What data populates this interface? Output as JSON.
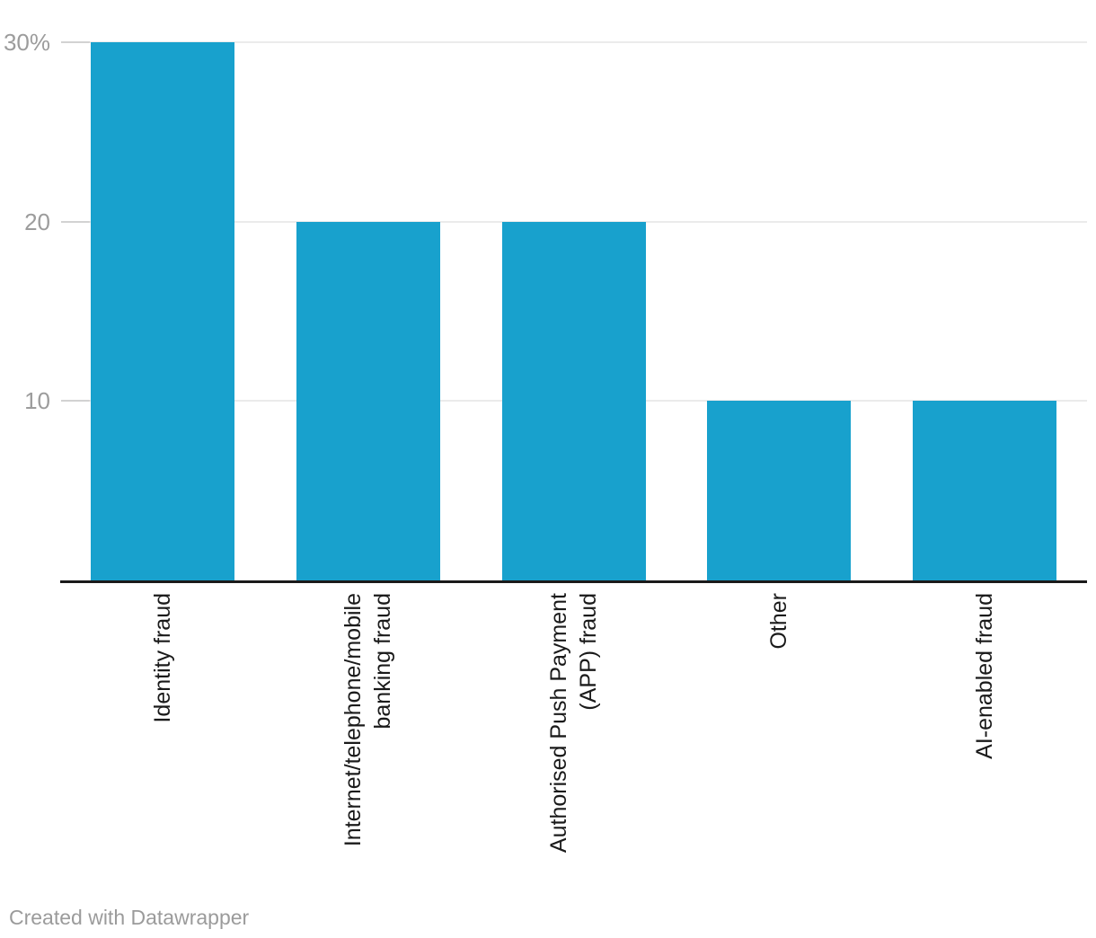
{
  "chart_data": {
    "type": "bar",
    "title": "",
    "xlabel": "",
    "ylabel": "",
    "categories": [
      "Identity fraud",
      "Internet/telephone/mobile banking fraud",
      "Authorised Push Payment (APP) fraud",
      "Other",
      "AI-enabled fraud"
    ],
    "category_label_lines": [
      [
        "Identity fraud"
      ],
      [
        "Internet/telephone/mobile",
        "banking fraud"
      ],
      [
        "Authorised Push Payment",
        "(APP) fraud"
      ],
      [
        "Other"
      ],
      [
        "AI-enabled fraud"
      ]
    ],
    "values": [
      30,
      20,
      20,
      10,
      10
    ],
    "unit": "%",
    "ylim": [
      0,
      30
    ],
    "grid": true,
    "legend": "none",
    "yticks": [
      {
        "value": 30,
        "label": "30%"
      },
      {
        "value": 20,
        "label": "20"
      },
      {
        "value": 10,
        "label": "10"
      }
    ]
  },
  "colors": {
    "bar": "#18a1cd",
    "gridline": "#ebebeb",
    "tick_stub": "#d2d2d2",
    "axis_line": "#1a1a1a",
    "tick_label": "#9c9c9c",
    "category_label": "#1a1a1a",
    "credit": "#9b9b9b"
  },
  "footer": {
    "credit": "Created with Datawrapper"
  }
}
